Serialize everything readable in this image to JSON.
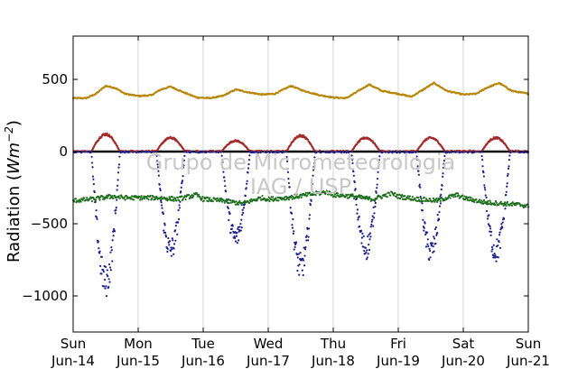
{
  "chart_data": {
    "type": "scatter",
    "ylabel_prefix": "Radiation (",
    "ylabel_unit_base": "Wm",
    "ylabel_unit_exp": "−2",
    "ylabel_suffix": ")",
    "xlim": [
      0,
      7
    ],
    "ylim": [
      -1250,
      800
    ],
    "yticks": [
      500,
      0,
      -500,
      -1000
    ],
    "ytick_labels": [
      "500",
      "0",
      "−500",
      "−1000"
    ],
    "xticks": [
      0,
      1,
      2,
      3,
      4,
      5,
      6,
      7
    ],
    "xtick_labels_day": [
      "Sun",
      "Mon",
      "Tue",
      "Wed",
      "Thu",
      "Fri",
      "Sat",
      "Sun"
    ],
    "xtick_labels_date": [
      "Jun-14",
      "Jun-15",
      "Jun-16",
      "Jun-17",
      "Jun-18",
      "Jun-19",
      "Jun-20",
      "Jun-21"
    ],
    "grid": "vertical",
    "zero_line": true,
    "watermark_line1": "Grupo de Micrometeorologia",
    "watermark_line2": "IAG / USP",
    "series": [
      {
        "color": "#b8860b",
        "daily_points": [
          [
            0,
            370
          ],
          [
            0.2,
            370
          ],
          [
            0.35,
            400
          ],
          [
            0.5,
            455
          ],
          [
            0.65,
            440
          ],
          [
            0.8,
            400
          ],
          [
            1.0,
            385
          ],
          [
            1.2,
            390
          ],
          [
            1.35,
            430
          ],
          [
            1.5,
            450
          ],
          [
            1.7,
            410
          ],
          [
            1.9,
            375
          ],
          [
            2.1,
            370
          ],
          [
            2.3,
            385
          ],
          [
            2.5,
            430
          ],
          [
            2.7,
            410
          ],
          [
            2.9,
            395
          ],
          [
            3.1,
            400
          ],
          [
            3.35,
            455
          ],
          [
            3.55,
            420
          ],
          [
            3.8,
            390
          ],
          [
            4.0,
            375
          ],
          [
            4.2,
            370
          ],
          [
            4.35,
            410
          ],
          [
            4.55,
            465
          ],
          [
            4.75,
            420
          ],
          [
            5.0,
            400
          ],
          [
            5.2,
            380
          ],
          [
            5.35,
            420
          ],
          [
            5.55,
            475
          ],
          [
            5.75,
            420
          ],
          [
            6.0,
            395
          ],
          [
            6.2,
            400
          ],
          [
            6.35,
            440
          ],
          [
            6.55,
            475
          ],
          [
            6.75,
            420
          ],
          [
            7.0,
            400
          ]
        ]
      },
      {
        "color": "#a52a2a",
        "days": [
          0,
          1,
          2,
          3,
          4,
          5,
          6
        ],
        "day_start": 0.28,
        "day_end": 0.72,
        "peaks": [
          120,
          95,
          75,
          110,
          95,
          95,
          95
        ],
        "baseline": 0
      },
      {
        "color": "#1e1e8c",
        "days": [
          0,
          1,
          2,
          3,
          4,
          5,
          6
        ],
        "day_start": 0.28,
        "day_end": 0.72,
        "troughs": [
          -900,
          -680,
          -600,
          -800,
          -670,
          -690,
          -690
        ],
        "baseline": 0
      },
      {
        "color": "#1e6e1e",
        "daily_points": [
          [
            0,
            -340
          ],
          [
            0.3,
            -330
          ],
          [
            0.6,
            -310
          ],
          [
            0.8,
            -320
          ],
          [
            1.0,
            -320
          ],
          [
            1.3,
            -320
          ],
          [
            1.6,
            -330
          ],
          [
            1.9,
            -300
          ],
          [
            2.0,
            -330
          ],
          [
            2.3,
            -340
          ],
          [
            2.6,
            -360
          ],
          [
            2.9,
            -320
          ],
          [
            3.0,
            -330
          ],
          [
            3.3,
            -320
          ],
          [
            3.6,
            -300
          ],
          [
            3.9,
            -280
          ],
          [
            4.0,
            -300
          ],
          [
            4.3,
            -310
          ],
          [
            4.6,
            -330
          ],
          [
            4.9,
            -290
          ],
          [
            5.0,
            -310
          ],
          [
            5.3,
            -330
          ],
          [
            5.6,
            -340
          ],
          [
            5.9,
            -300
          ],
          [
            6.0,
            -320
          ],
          [
            6.3,
            -350
          ],
          [
            6.6,
            -360
          ],
          [
            6.9,
            -370
          ],
          [
            7.0,
            -380
          ]
        ]
      }
    ]
  }
}
